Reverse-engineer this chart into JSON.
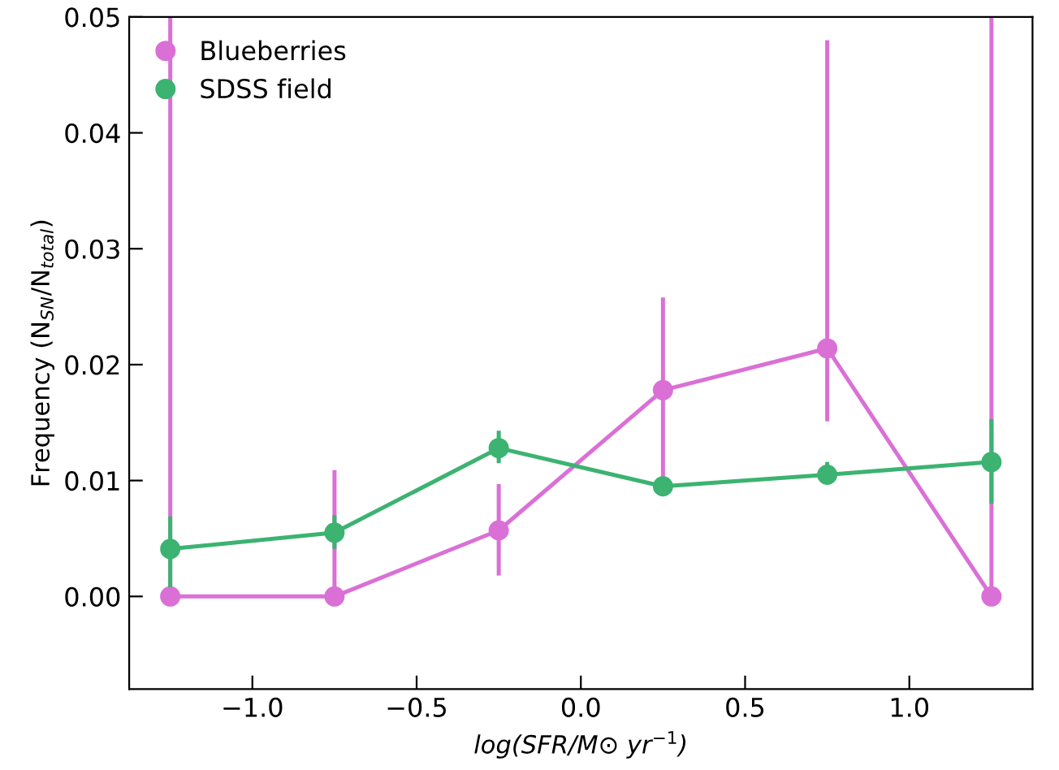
{
  "chart_data": {
    "type": "line",
    "xlabel": "log(SFR/M⊙ yr$^{−1}$)",
    "ylabel": "Frequency (N$_{SN}$/N$_{total}$)",
    "x": [
      -1.25,
      -0.75,
      -0.25,
      0.25,
      0.75,
      1.25
    ],
    "series": [
      {
        "name": "Blueberries",
        "color": "#da70d6",
        "values": [
          0,
          0,
          0.0057,
          0.0178,
          0.0214,
          0
        ],
        "errors": [
          [
            0,
            0.05
          ],
          [
            0,
            0.0109
          ],
          [
            0.0018,
            0.0097
          ],
          [
            0.0101,
            0.0258
          ],
          [
            0.0151,
            0.048
          ],
          [
            0,
            0.05
          ]
        ]
      },
      {
        "name": "SDSS field",
        "color": "#3cb371",
        "values": [
          0.0041,
          0.0055,
          0.0128,
          0.0095,
          0.0105,
          0.0116
        ],
        "errors": [
          [
            0.0008,
            0.0069
          ],
          [
            0.0041,
            0.007
          ],
          [
            0.0115,
            0.0143
          ],
          null,
          [
            0.0098,
            0.0116
          ],
          [
            0.008,
            0.0153
          ]
        ]
      }
    ],
    "xlim": [
      -1.375,
      1.375
    ],
    "ylim": [
      -0.008,
      0.05
    ],
    "xticks": [
      {
        "value": -1.0,
        "label": "−1.0"
      },
      {
        "value": -0.5,
        "label": "−0.5"
      },
      {
        "value": 0.0,
        "label": "0.0"
      },
      {
        "value": 0.5,
        "label": "0.5"
      },
      {
        "value": 1.0,
        "label": "1.0"
      }
    ],
    "yticks": [
      {
        "value": 0.0,
        "label": "0.00"
      },
      {
        "value": 0.01,
        "label": "0.01"
      },
      {
        "value": 0.02,
        "label": "0.02"
      },
      {
        "value": 0.03,
        "label": "0.03"
      },
      {
        "value": 0.04,
        "label": "0.04"
      },
      {
        "value": 0.05,
        "label": "0.05"
      }
    ],
    "legend": "top left",
    "marker": "circle",
    "line_style": "solid",
    "grid": false
  }
}
